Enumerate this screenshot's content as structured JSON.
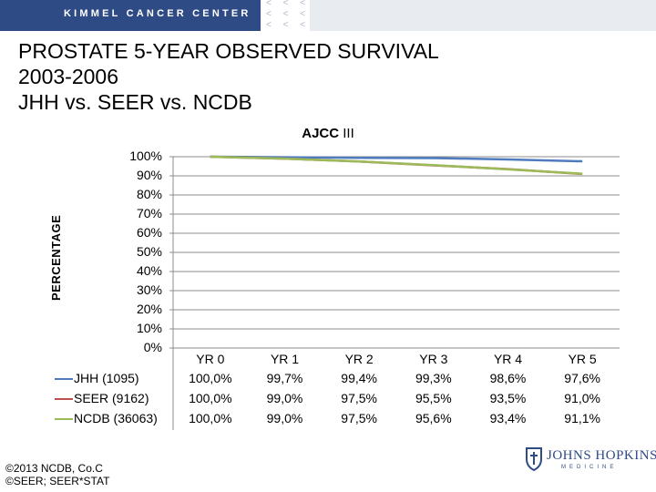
{
  "header": {
    "org_name": "KIMMEL CANCER CENTER",
    "chevrons": "< < <\n< < <\n< < <"
  },
  "title": {
    "line1": "PROSTATE 5-YEAR OBSERVED SURVIVAL",
    "line2": "2003-2006",
    "line3": "JHH vs. SEER vs. NCDB"
  },
  "footer": {
    "line1": "©2013 NCDB, Co.C",
    "line2": "©SEER; SEER*STAT"
  },
  "logo": {
    "name": "JOHNS HOPKINS",
    "sub": "MEDICINE"
  },
  "colors": {
    "jhh": "#4f7bbf",
    "seer": "#c0504d",
    "ncdb": "#9bbb59",
    "grid": "#8c8c8c",
    "header": "#2f4b86"
  },
  "chart_data": {
    "type": "line",
    "title_bold": "AJCC",
    "title_rest": " III",
    "ylabel": "PERCENTAGE",
    "xlabel": "",
    "ylim": [
      0,
      100
    ],
    "yticks": [
      "100%",
      "90%",
      "80%",
      "70%",
      "60%",
      "50%",
      "40%",
      "30%",
      "20%",
      "10%",
      "0%"
    ],
    "categories": [
      "YR 0",
      "YR 1",
      "YR 2",
      "YR 3",
      "YR 4",
      "YR 5"
    ],
    "series": [
      {
        "name": "JHH (1095)",
        "key": "jhh",
        "values": [
          100.0,
          99.7,
          99.4,
          99.3,
          98.6,
          97.6
        ],
        "labels": [
          "100,0%",
          "99,7%",
          "99,4%",
          "99,3%",
          "98,6%",
          "97,6%"
        ]
      },
      {
        "name": "SEER (9162)",
        "key": "seer",
        "values": [
          100.0,
          99.0,
          97.5,
          95.5,
          93.5,
          91.0
        ],
        "labels": [
          "100,0%",
          "99,0%",
          "97,5%",
          "95,5%",
          "93,5%",
          "91,0%"
        ]
      },
      {
        "name": "NCDB (36063)",
        "key": "ncdb",
        "values": [
          100.0,
          99.0,
          97.5,
          95.6,
          93.4,
          91.1
        ],
        "labels": [
          "100,0%",
          "99,0%",
          "97,5%",
          "95,6%",
          "93,4%",
          "91,1%"
        ]
      }
    ],
    "grid": true,
    "legend": "data-table"
  }
}
